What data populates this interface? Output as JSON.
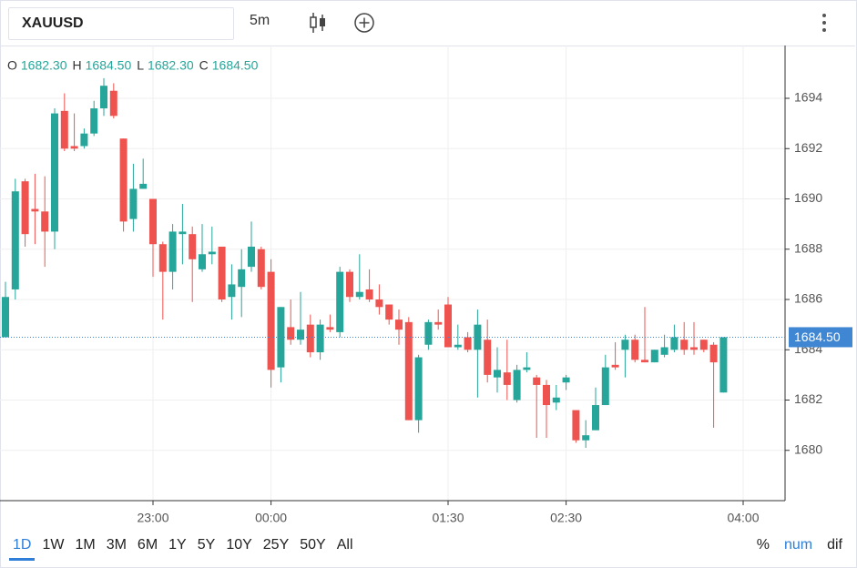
{
  "toolbar": {
    "symbol": "XAUUSD",
    "interval": "5m"
  },
  "ranges": {
    "items": [
      "1D",
      "1W",
      "1M",
      "3M",
      "6M",
      "1Y",
      "5Y",
      "10Y",
      "25Y",
      "50Y",
      "All"
    ],
    "active": 0
  },
  "scale_modes": {
    "items": [
      "%",
      "num",
      "dif"
    ],
    "active": 1
  },
  "chart_data": {
    "type": "candlestick",
    "legend": [
      {
        "key": "O",
        "value": "1682.30"
      },
      {
        "key": "H",
        "value": "1684.50"
      },
      {
        "key": "L",
        "value": "1682.30"
      },
      {
        "key": "C",
        "value": "1684.50"
      }
    ],
    "categories": [
      "21:45",
      "21:50",
      "21:55",
      "22:00",
      "22:05",
      "22:10",
      "22:15",
      "22:20",
      "22:25",
      "22:30",
      "22:35",
      "22:40",
      "22:45",
      "22:50",
      "22:55",
      "23:00",
      "23:05",
      "23:10",
      "23:15",
      "23:20",
      "23:25",
      "23:30",
      "23:35",
      "23:40",
      "23:45",
      "23:50",
      "23:55",
      "00:00",
      "00:05",
      "00:10",
      "00:15",
      "00:20",
      "00:25",
      "00:30",
      "00:35",
      "00:40",
      "00:45",
      "00:50",
      "00:55",
      "01:00",
      "01:05",
      "01:10",
      "01:15",
      "01:20",
      "01:25",
      "01:30",
      "01:35",
      "01:40",
      "01:45",
      "01:50",
      "01:55",
      "02:00",
      "02:05",
      "02:10",
      "02:15",
      "02:20",
      "02:25",
      "02:30",
      "02:35",
      "02:40",
      "02:45",
      "02:50",
      "02:55",
      "03:00",
      "03:05",
      "03:10",
      "03:15",
      "03:20",
      "03:25",
      "03:30",
      "03:35",
      "03:40",
      "03:45",
      "03:50"
    ],
    "open": [
      1684.5,
      1686.4,
      1690.7,
      1689.6,
      1689.5,
      1688.7,
      1693.5,
      1692.1,
      1692.1,
      1692.6,
      1693.6,
      1694.3,
      1692.4,
      1689.2,
      1690.4,
      1690.0,
      1688.2,
      1687.1,
      1688.6,
      1688.6,
      1687.2,
      1687.8,
      1688.1,
      1686.1,
      1686.5,
      1687.3,
      1688.0,
      1687.1,
      1683.3,
      1684.9,
      1684.4,
      1685.0,
      1683.9,
      1684.9,
      1684.7,
      1687.1,
      1686.1,
      1686.4,
      1686.0,
      1685.8,
      1685.2,
      1685.1,
      1681.2,
      1684.2,
      1685.1,
      1685.8,
      1684.1,
      1684.5,
      1684.0,
      1684.4,
      1682.9,
      1683.1,
      1682.0,
      1683.2,
      1682.9,
      1682.6,
      1681.9,
      1682.7,
      1681.6,
      1680.4,
      1680.8,
      1681.8,
      1683.4,
      1684.0,
      1684.4,
      1683.6,
      1683.5,
      1683.8,
      1684.0,
      1684.4,
      1684.1,
      1684.4,
      1684.2,
      1682.3
    ],
    "high": [
      1686.7,
      1690.8,
      1690.8,
      1691.0,
      1690.9,
      1693.6,
      1694.2,
      1693.4,
      1692.8,
      1693.9,
      1694.8,
      1694.6,
      1692.4,
      1691.4,
      1691.6,
      1690.0,
      1688.3,
      1689.0,
      1689.8,
      1688.9,
      1689.0,
      1688.9,
      1688.1,
      1687.4,
      1688.0,
      1689.1,
      1688.1,
      1687.6,
      1685.7,
      1686.0,
      1686.3,
      1685.4,
      1685.2,
      1685.4,
      1687.3,
      1687.2,
      1687.8,
      1687.2,
      1686.6,
      1685.8,
      1685.6,
      1685.3,
      1683.8,
      1685.2,
      1685.6,
      1686.1,
      1685.0,
      1684.7,
      1685.6,
      1685.2,
      1684.1,
      1684.4,
      1683.4,
      1683.9,
      1683.0,
      1682.8,
      1682.6,
      1683.0,
      1681.6,
      1681.2,
      1682.5,
      1683.8,
      1684.3,
      1684.6,
      1684.6,
      1685.7,
      1684.0,
      1684.6,
      1685.0,
      1685.1,
      1685.1,
      1684.4,
      1684.3,
      1684.5
    ],
    "low": [
      1684.5,
      1686.0,
      1688.1,
      1688.2,
      1687.3,
      1688.0,
      1691.9,
      1691.9,
      1692.0,
      1692.5,
      1693.3,
      1693.2,
      1688.7,
      1688.7,
      1690.4,
      1686.9,
      1685.2,
      1686.4,
      1687.4,
      1685.9,
      1687.1,
      1687.4,
      1685.9,
      1685.2,
      1685.3,
      1687.1,
      1686.4,
      1682.5,
      1682.7,
      1684.2,
      1684.2,
      1683.7,
      1683.6,
      1684.7,
      1684.5,
      1685.9,
      1686.0,
      1685.9,
      1685.4,
      1685.0,
      1684.2,
      1681.2,
      1680.7,
      1684.0,
      1684.8,
      1684.1,
      1684.0,
      1683.9,
      1682.1,
      1682.7,
      1682.3,
      1682.0,
      1681.9,
      1683.1,
      1680.5,
      1680.5,
      1681.6,
      1682.4,
      1680.3,
      1680.1,
      1680.8,
      1681.8,
      1683.2,
      1682.9,
      1683.5,
      1683.5,
      1683.5,
      1683.7,
      1683.9,
      1683.8,
      1683.8,
      1683.9,
      1680.9,
      1682.3
    ],
    "close": [
      1686.1,
      1690.3,
      1688.6,
      1689.5,
      1688.7,
      1693.4,
      1692.0,
      1692.0,
      1692.6,
      1693.6,
      1694.5,
      1693.3,
      1689.1,
      1690.4,
      1690.6,
      1688.2,
      1687.1,
      1688.7,
      1688.7,
      1687.6,
      1687.8,
      1687.9,
      1686.0,
      1686.6,
      1687.2,
      1688.1,
      1686.5,
      1683.2,
      1685.7,
      1684.4,
      1684.8,
      1683.9,
      1685.0,
      1684.8,
      1687.1,
      1686.1,
      1686.3,
      1686.0,
      1685.7,
      1685.2,
      1684.8,
      1681.2,
      1683.7,
      1685.1,
      1685.0,
      1684.1,
      1684.2,
      1684.0,
      1685.0,
      1683.0,
      1683.2,
      1682.6,
      1683.2,
      1683.3,
      1682.6,
      1681.8,
      1682.1,
      1682.9,
      1680.4,
      1680.6,
      1681.8,
      1683.3,
      1683.3,
      1684.4,
      1683.6,
      1683.5,
      1684.0,
      1684.1,
      1684.5,
      1684.0,
      1684.0,
      1684.0,
      1683.5,
      1684.5
    ],
    "up_color": "#26a69a",
    "down_color": "#ef5350",
    "ylim": [
      1678,
      1696.1
    ],
    "yticks": [
      1680,
      1682,
      1684,
      1686,
      1688,
      1690,
      1692,
      1694
    ],
    "xticks": [
      "23:00",
      "00:00",
      "01:30",
      "02:30",
      "04:00"
    ],
    "grid": true,
    "last_price": {
      "value": 1684.5,
      "label": "1684.50",
      "color": "#3f86d3"
    }
  }
}
